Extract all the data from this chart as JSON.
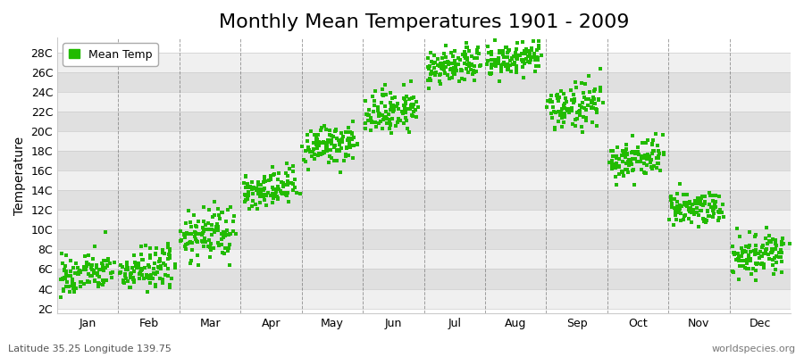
{
  "title": "Monthly Mean Temperatures 1901 - 2009",
  "ylabel": "Temperature",
  "xlabel_bottom_left": "Latitude 35.25 Longitude 139.75",
  "xlabel_bottom_right": "worldspecies.org",
  "legend_label": "Mean Temp",
  "marker_color": "#22bb00",
  "marker_size": 5,
  "background_color": "#ffffff",
  "plot_bg_color": "#ffffff",
  "band_color_light": "#f0f0f0",
  "band_color_dark": "#e0e0e0",
  "ytick_labels": [
    "2C",
    "4C",
    "6C",
    "8C",
    "10C",
    "12C",
    "14C",
    "16C",
    "18C",
    "20C",
    "22C",
    "24C",
    "26C",
    "28C"
  ],
  "ytick_values": [
    2,
    4,
    6,
    8,
    10,
    12,
    14,
    16,
    18,
    20,
    22,
    24,
    26,
    28
  ],
  "ylim": [
    1.5,
    29.5
  ],
  "months": [
    "Jan",
    "Feb",
    "Mar",
    "Apr",
    "May",
    "Jun",
    "Jul",
    "Aug",
    "Sep",
    "Oct",
    "Nov",
    "Dec"
  ],
  "monthly_mean_temps": [
    5.5,
    6.0,
    9.5,
    14.0,
    18.5,
    22.0,
    26.5,
    27.2,
    22.5,
    17.2,
    12.2,
    7.5
  ],
  "monthly_std_temps": [
    1.0,
    1.1,
    1.3,
    1.0,
    1.0,
    1.1,
    0.9,
    0.9,
    1.1,
    1.0,
    0.9,
    1.0
  ],
  "warming_trend": 0.008,
  "n_years": 109,
  "seed": 42,
  "title_fontsize": 16,
  "axis_label_fontsize": 10,
  "tick_fontsize": 9,
  "legend_fontsize": 9,
  "grid_color": "#666666",
  "figsize": [
    9.0,
    4.0
  ],
  "dpi": 100
}
